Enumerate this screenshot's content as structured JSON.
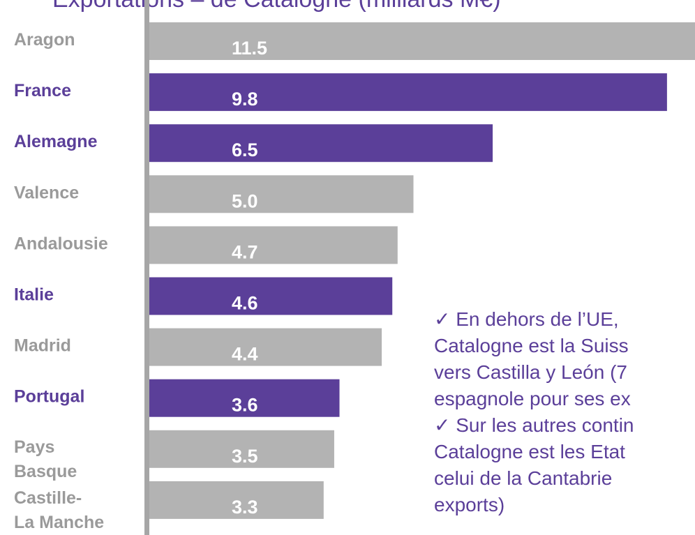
{
  "chart_data": {
    "type": "barh",
    "title": "Exportations – de Catalogne (milliards M€)",
    "categories": [
      [
        "Aragon"
      ],
      [
        "France"
      ],
      [
        "Alemagne"
      ],
      [
        "Valence"
      ],
      [
        "Andalousie"
      ],
      [
        "Italie"
      ],
      [
        "Madrid"
      ],
      [
        "Portugal"
      ],
      [
        "Pays",
        "Basque"
      ],
      [
        "Castille-",
        "La Manche"
      ]
    ],
    "values": [
      11.5,
      9.8,
      6.5,
      5.0,
      4.7,
      4.6,
      4.4,
      3.6,
      3.5,
      3.3
    ],
    "value_labels": [
      "11.5",
      "9.8",
      "6.5",
      "5.0",
      "4.7",
      "4.6",
      "4.4",
      "3.6",
      "3.5",
      "3.3"
    ],
    "colors": [
      "#b3b3b3",
      "#5b3f99",
      "#5b3f99",
      "#b3b3b3",
      "#b3b3b3",
      "#5b3f99",
      "#b3b3b3",
      "#5b3f99",
      "#b3b3b3",
      "#b3b3b3"
    ],
    "label_colors": [
      "#9a9a9a",
      "#5b3f99",
      "#5b3f99",
      "#9a9a9a",
      "#9a9a9a",
      "#5b3f99",
      "#9a9a9a",
      "#5b3f99",
      "#9a9a9a",
      "#9a9a9a"
    ],
    "xlim": [
      0,
      10.33
    ],
    "annotations": [
      "✓ En dehors de l’UE, ",
      "Catalogne est la Suiss",
      "vers Castilla y León (7",
      "espagnole pour ses ex",
      "✓ Sur les autres contin",
      "Catalogne est les Etat",
      "celui de la Cantabrie ",
      "exports)"
    ]
  }
}
